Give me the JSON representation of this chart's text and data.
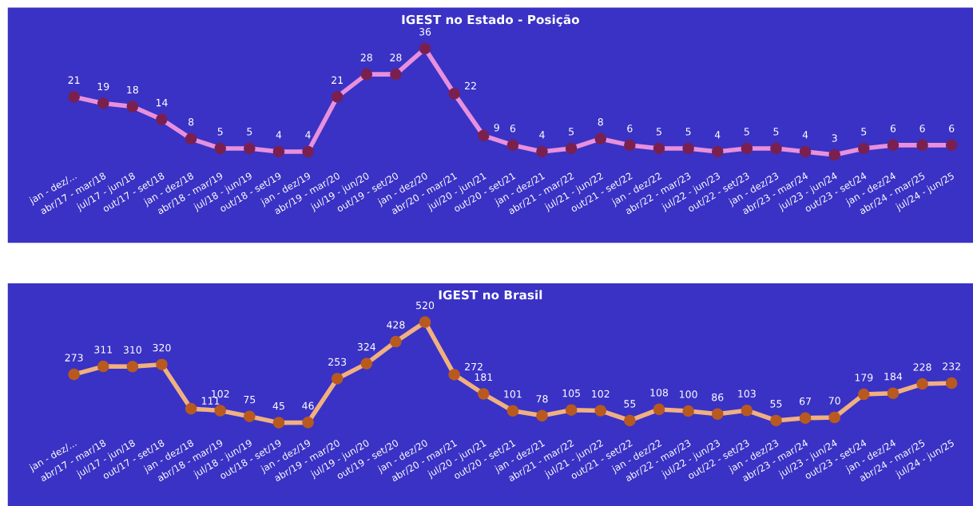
{
  "chart_data": [
    {
      "type": "line",
      "title": "IGEST no Estado - Posição",
      "categories": [
        "jan - dez/...",
        "abr/17 - mar/18",
        "jul/17 - jun/18",
        "out/17 - set/18",
        "jan - dez/18",
        "abr/18 - mar/19",
        "jul/18 - jun/19",
        "out/18 - set/19",
        "jan - dez/19",
        "abr/19 - mar/20",
        "jul/19 - jun/20",
        "out/19 - set/20",
        "jan - dez/20",
        "abr/20 - mar/21",
        "jul/20 - jun/21",
        "out/20 - set/21",
        "jan - dez/21",
        "abr/21 - mar/22",
        "jul/21 - jun/22",
        "out/21 - set/22",
        "jan - dez/22",
        "abr/22 - mar/23",
        "jul/22 - jun/23",
        "out/22 - set/23",
        "jan - dez/23",
        "abr/23 - mar/24",
        "jul/23 - jun/24",
        "out/23 - set/24",
        "jan - dez/24",
        "abr/24 - mar/25",
        "jul/24 - jun/25"
      ],
      "series": [
        {
          "color": "#e890dc",
          "colors": [
            "#7a2050",
            "#7a2050",
            "#7a2050",
            "#7a2050",
            "#7a2050",
            "#7a2050",
            "#7a2050",
            "#7a2050",
            "#7a2050",
            "#7a2050",
            "#7a2050",
            "#7a2050",
            "#7a2050",
            "#7a2050",
            "#7a2050",
            "#7a2050",
            "#7a2050",
            "#7a2050",
            "#7a2050",
            "#7a2050",
            "#7a2050",
            "#7a2050",
            "#7a2050",
            "#7a2050",
            "#7a2050",
            "#7a2050",
            "#7a2050",
            "#7a2050",
            "#7a2050",
            "#7a2050",
            "#7a2050"
          ],
          "values": [
            21,
            19,
            18,
            14,
            8,
            5,
            5,
            4,
            4,
            21,
            28,
            28,
            36,
            22,
            9,
            6,
            4,
            5,
            8,
            6,
            5,
            5,
            4,
            5,
            5,
            4,
            3,
            5,
            6,
            6,
            6
          ]
        }
      ],
      "data_labels": true,
      "marker": "circle",
      "tick_labels": "x",
      "legend": false,
      "grid": false
    },
    {
      "type": "line",
      "title": "IGEST no Brasil",
      "categories": [
        "jan - dez/...",
        "abr/17 - mar/18",
        "jul/17 - jun/18",
        "out/17 - set/18",
        "jan - dez/18",
        "abr/18 - mar/19",
        "jul/18 - jun/19",
        "out/18 - set/19",
        "jan - dez/19",
        "abr/19 - mar/20",
        "jul/19 - jun/20",
        "out/19 - set/20",
        "jan - dez/20",
        "abr/20 - mar/21",
        "jul/20 - jun/21",
        "out/20 - set/21",
        "jan - dez/21",
        "abr/21 - mar/22",
        "jul/21 - jun/22",
        "out/21 - set/22",
        "jan - dez/22",
        "abr/22 - mar/23",
        "jul/22 - jun/23",
        "out/22 - set/23",
        "jan - dez/23",
        "abr/23 - mar/24",
        "jul/23 - jun/24",
        "out/23 - set/24",
        "jan - dez/24",
        "abr/24 - mar/25",
        "jul/24 - jun/25"
      ],
      "series": [
        {
          "color": "#f0b080",
          "colors": [
            "#b85a20",
            "#b85a20",
            "#b85a20",
            "#b85a20",
            "#b85a20",
            "#b85a20",
            "#b85a20",
            "#b85a20",
            "#b85a20",
            "#b85a20",
            "#b85a20",
            "#b85a20",
            "#b85a20",
            "#b85a20",
            "#b85a20",
            "#b85a20",
            "#b85a20",
            "#b85a20",
            "#b85a20",
            "#b85a20",
            "#b85a20",
            "#b85a20",
            "#b85a20",
            "#b85a20",
            "#b85a20",
            "#b85a20",
            "#b85a20",
            "#b85a20",
            "#b85a20",
            "#b85a20",
            "#b85a20"
          ],
          "values": [
            273,
            311,
            310,
            320,
            111,
            102,
            75,
            45,
            46,
            253,
            324,
            428,
            520,
            272,
            181,
            101,
            78,
            105,
            102,
            55,
            108,
            100,
            86,
            103,
            55,
            67,
            70,
            179,
            184,
            228,
            232
          ]
        }
      ],
      "data_labels": true,
      "marker": "circle",
      "tick_labels": "x",
      "legend": false,
      "grid": false
    }
  ]
}
